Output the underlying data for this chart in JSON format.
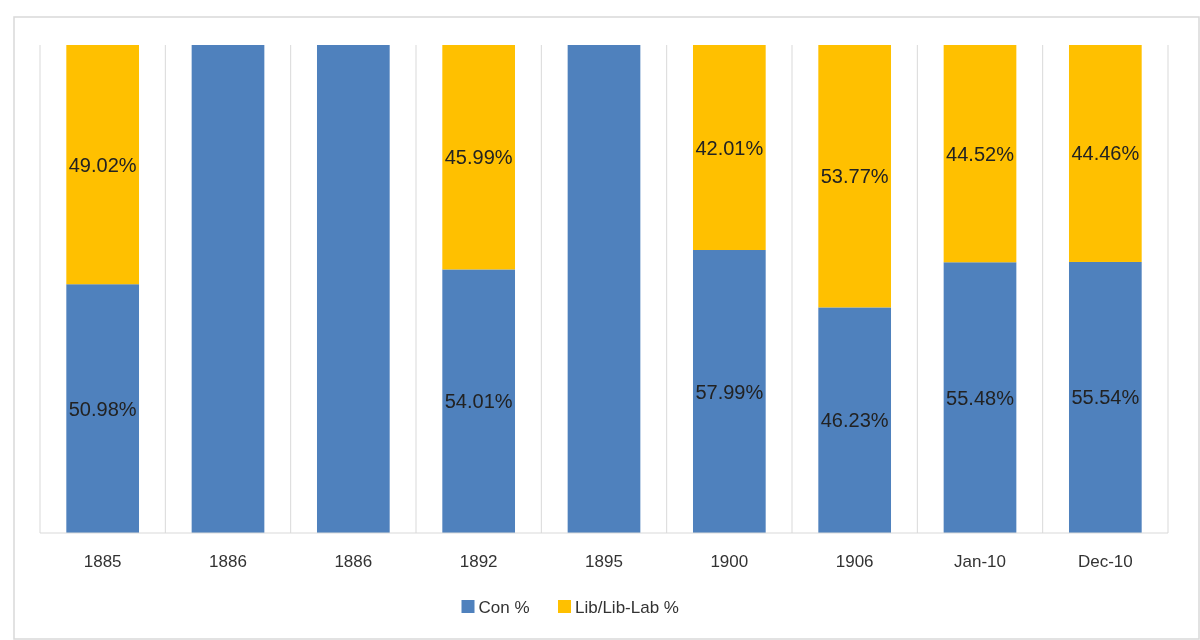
{
  "chart_data": {
    "type": "bar",
    "stacked": true,
    "categories": [
      "1885",
      "1886",
      "1886",
      "1892",
      "1895",
      "1900",
      "1906",
      "Jan-10",
      "Dec-10"
    ],
    "series": [
      {
        "name": "Con %",
        "color": "#4f81bd",
        "values": [
          50.98,
          100,
          100,
          54.01,
          100,
          57.99,
          46.23,
          55.48,
          55.54
        ],
        "value_labels": [
          "50.98%",
          null,
          null,
          "54.01%",
          null,
          "57.99%",
          "46.23%",
          "55.48%",
          "55.54%"
        ]
      },
      {
        "name": "Lib/Lib-Lab %",
        "color": "#ffc000",
        "values": [
          49.02,
          0,
          0,
          45.99,
          0,
          42.01,
          53.77,
          44.52,
          44.46
        ],
        "value_labels": [
          "49.02%",
          null,
          null,
          "45.99%",
          null,
          "42.01%",
          "53.77%",
          "44.52%",
          "44.46%"
        ]
      }
    ],
    "ylim": [
      0,
      100
    ],
    "tick_labels": "x",
    "grid": "x",
    "legend": "bottom"
  }
}
